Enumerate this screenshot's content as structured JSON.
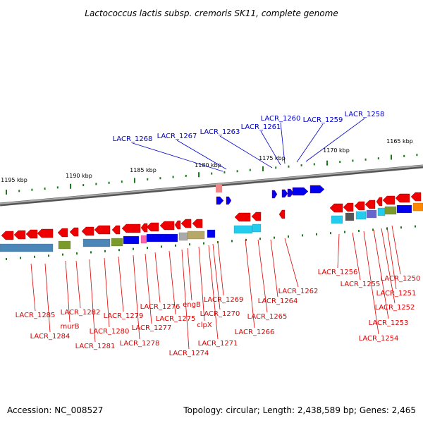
{
  "title": "Lactococcus lactis subsp. cremoris SK11, complete genome",
  "footer": {
    "accession": "Accession: NC_008527",
    "stats": "Topology: circular; Length: 2,438,589 bp; Genes: 2,465"
  },
  "colors": {
    "forward_label": "#0000cc",
    "reverse_label": "#dd0000",
    "forward_gene": "#0000ee",
    "reverse_gene": "#ee0000",
    "backbone": "#888888",
    "tick": "#1a7a1a"
  },
  "kbp_labels": [
    "1195 kbp",
    "1190 kbp",
    "1185 kbp",
    "1180 kbp",
    "1175 kbp",
    "1170 kbp",
    "1165 kbp"
  ],
  "forward_labels": [
    "LACR_1268",
    "LACR_1267",
    "LACR_1263",
    "LACR_1261",
    "LACR_1260",
    "LACR_1259",
    "LACR_1258"
  ],
  "reverse_labels": [
    "LACR_1285",
    "LACR_1284",
    "LACR_1282",
    "murB",
    "LACR_1281",
    "LACR_1280",
    "LACR_1279",
    "LACR_1278",
    "LACR_1277",
    "LACR_1276",
    "LACR_1275",
    "LACR_1274",
    "engB",
    "clpX",
    "LACR_1271",
    "LACR_1270",
    "LACR_1269",
    "LACR_1266",
    "LACR_1265",
    "LACR_1264",
    "LACR_1262",
    "LACR_1256",
    "LACR_1255",
    "LACR_1254",
    "LACR_1253",
    "LACR_1252",
    "LACR_1251",
    "LACR_1250"
  ]
}
